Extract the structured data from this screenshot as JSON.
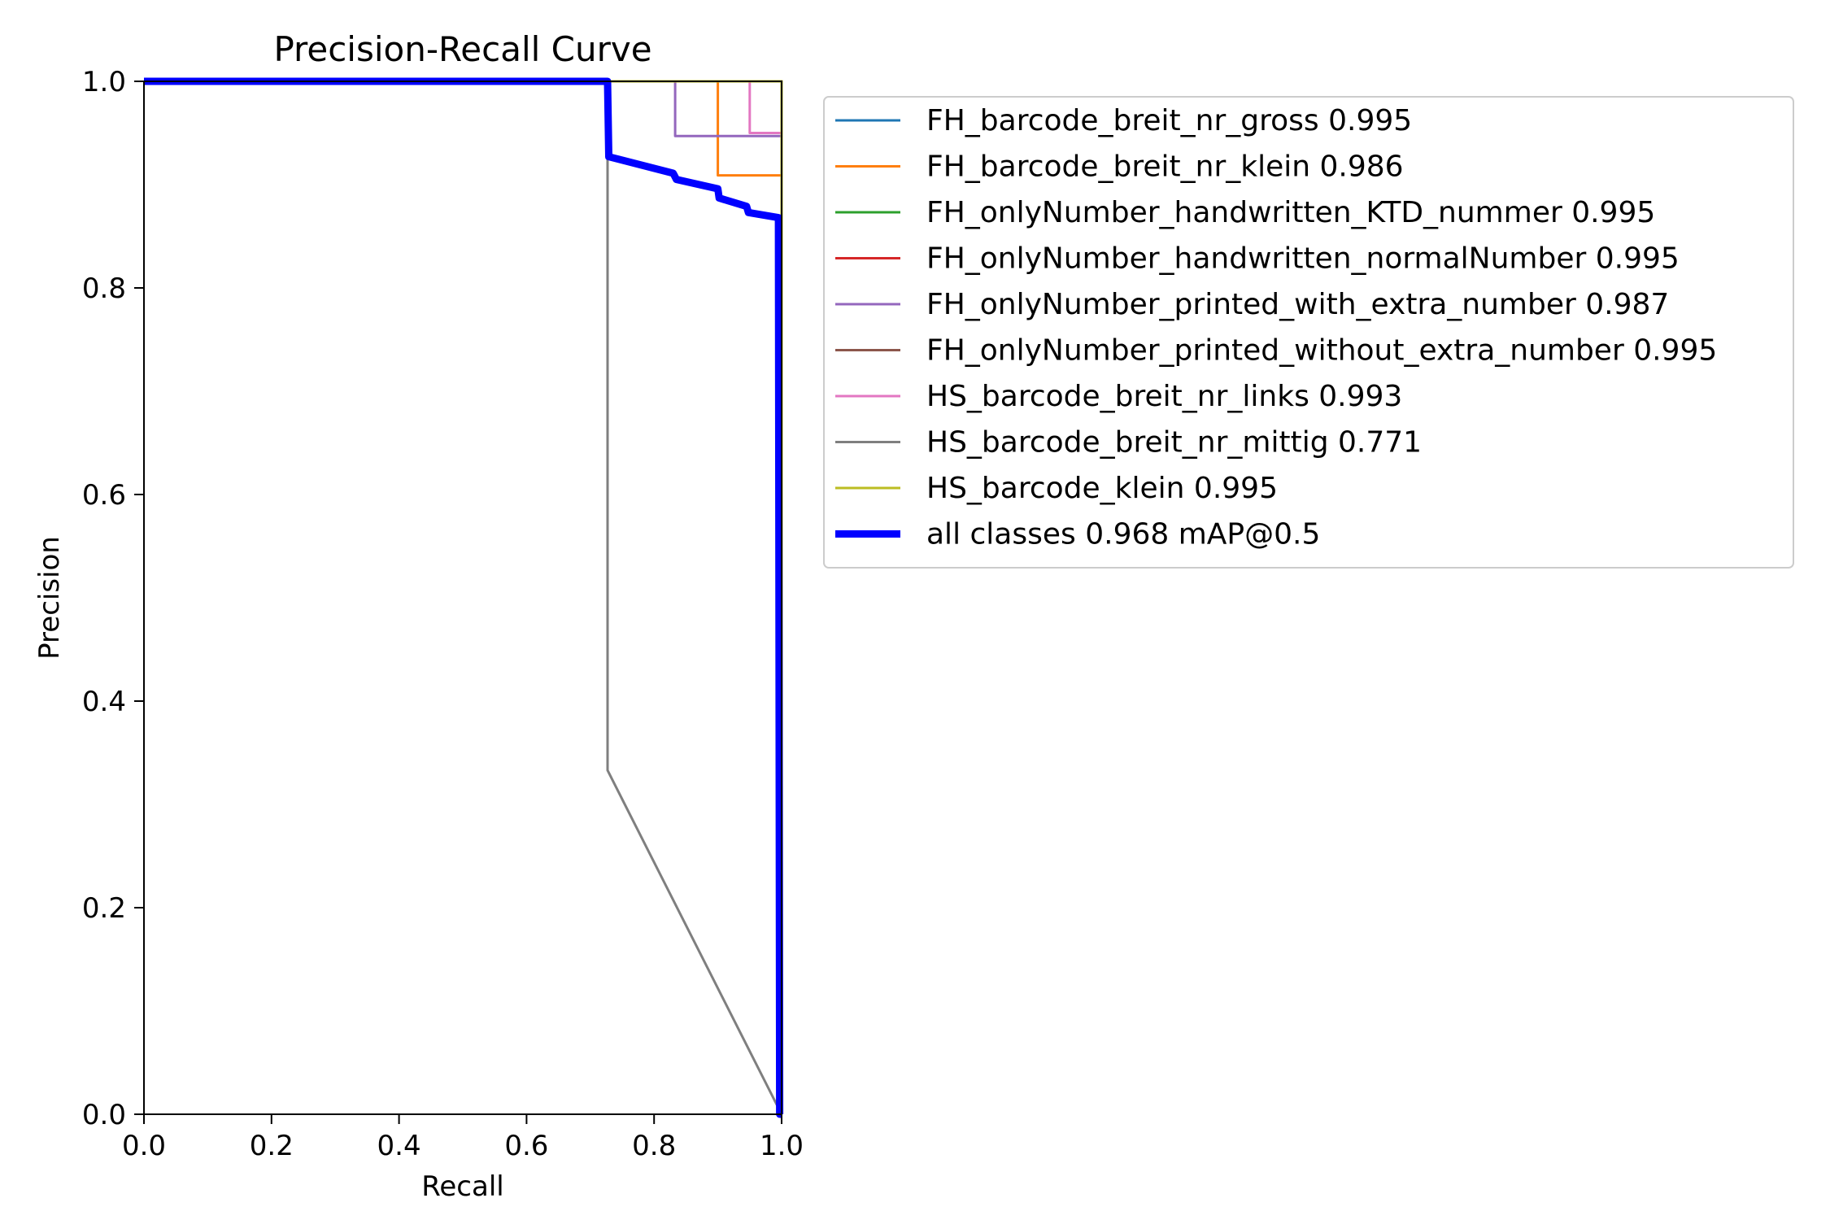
{
  "chart_data": {
    "type": "line",
    "title": "Precision-Recall Curve",
    "xlabel": "Recall",
    "ylabel": "Precision",
    "xlim": [
      0.0,
      1.0
    ],
    "ylim": [
      0.0,
      1.0
    ],
    "xticks": [
      "0.0",
      "0.2",
      "0.4",
      "0.6",
      "0.8",
      "1.0"
    ],
    "yticks": [
      "0.0",
      "0.2",
      "0.4",
      "0.6",
      "0.8",
      "1.0"
    ],
    "grid": false,
    "legend_position": "outside-right",
    "series": [
      {
        "name": "FH_barcode_breit_nr_gross 0.995",
        "color": "#1f77b4",
        "thick": false,
        "x": [
          0.0,
          1.0,
          1.0
        ],
        "y": [
          1.0,
          1.0,
          0.0
        ]
      },
      {
        "name": "FH_barcode_breit_nr_klein 0.986",
        "color": "#ff7f0e",
        "thick": false,
        "x": [
          0.0,
          0.9,
          0.9,
          1.0,
          1.0
        ],
        "y": [
          1.0,
          1.0,
          0.909,
          0.909,
          0.0
        ]
      },
      {
        "name": "FH_onlyNumber_handwritten_KTD_nummer 0.995",
        "color": "#2ca02c",
        "thick": false,
        "x": [
          0.0,
          1.0,
          1.0
        ],
        "y": [
          1.0,
          1.0,
          0.0
        ]
      },
      {
        "name": "FH_onlyNumber_handwritten_normalNumber 0.995",
        "color": "#d62728",
        "thick": false,
        "x": [
          0.0,
          1.0,
          1.0
        ],
        "y": [
          1.0,
          1.0,
          0.0
        ]
      },
      {
        "name": "FH_onlyNumber_printed_with_extra_number 0.987",
        "color": "#9467bd",
        "thick": false,
        "x": [
          0.0,
          0.833,
          0.833,
          1.0,
          1.0
        ],
        "y": [
          1.0,
          1.0,
          0.947,
          0.947,
          0.0
        ]
      },
      {
        "name": "FH_onlyNumber_printed_without_extra_number 0.995",
        "color": "#8c564b",
        "thick": false,
        "x": [
          0.0,
          1.0,
          1.0
        ],
        "y": [
          1.0,
          1.0,
          0.0
        ]
      },
      {
        "name": "HS_barcode_breit_nr_links 0.993",
        "color": "#e377c2",
        "thick": false,
        "x": [
          0.0,
          0.95,
          0.95,
          1.0,
          1.0
        ],
        "y": [
          1.0,
          1.0,
          0.95,
          0.95,
          0.0
        ]
      },
      {
        "name": "HS_barcode_breit_nr_mittig 0.771",
        "color": "#7f7f7f",
        "thick": false,
        "x": [
          0.0,
          0.727,
          0.727,
          0.727,
          1.0
        ],
        "y": [
          1.0,
          1.0,
          0.92,
          0.333,
          0.0
        ]
      },
      {
        "name": "HS_barcode_klein 0.995",
        "color": "#bcbd22",
        "thick": false,
        "x": [
          0.0,
          1.0,
          1.0
        ],
        "y": [
          1.0,
          1.0,
          0.0
        ]
      },
      {
        "name": "all classes 0.968 mAP@0.5",
        "color": "#0000ff",
        "thick": true,
        "x": [
          0.0,
          0.727,
          0.729,
          0.83,
          0.835,
          0.9,
          0.902,
          0.945,
          0.948,
          0.995,
          0.997,
          1.0
        ],
        "y": [
          1.0,
          1.0,
          0.927,
          0.911,
          0.905,
          0.896,
          0.887,
          0.879,
          0.873,
          0.868,
          0.0,
          0.0
        ]
      }
    ]
  }
}
